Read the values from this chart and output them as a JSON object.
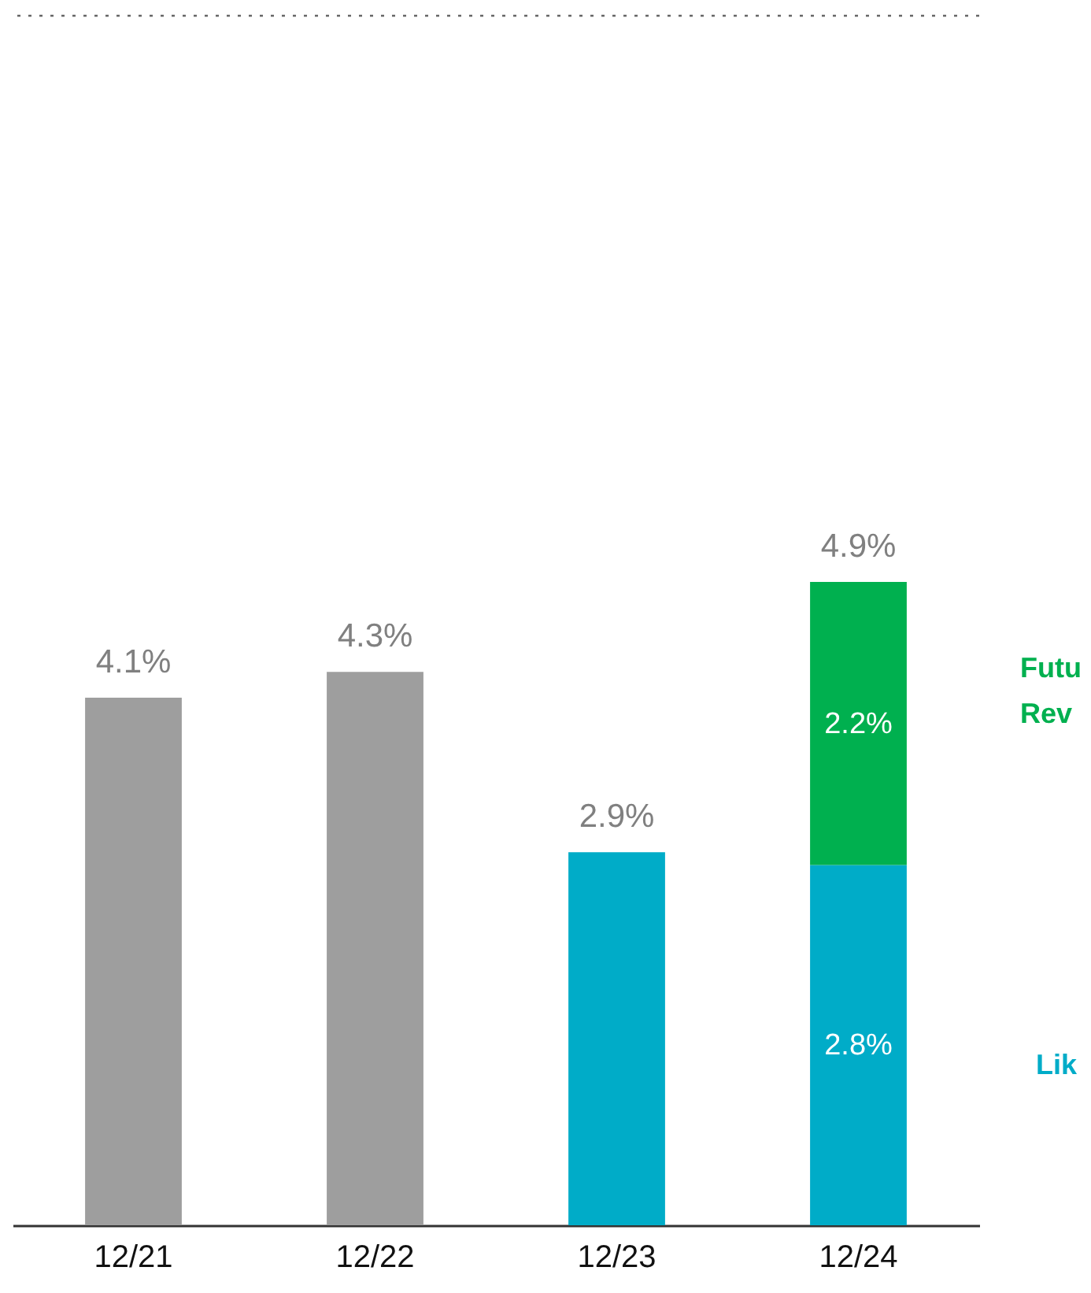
{
  "chart_data": {
    "type": "bar",
    "stacked": true,
    "categories": [
      "12/21",
      "12/22",
      "12/23",
      "12/24"
    ],
    "series": [
      {
        "colors": [
          "#9e9e9e",
          "#9e9e9e",
          "#00acc8",
          "#00acc8"
        ],
        "values": [
          4.1,
          4.3,
          2.9,
          2.8
        ],
        "value_labels": [
          null,
          null,
          null,
          "2.8%"
        ]
      },
      {
        "color": "#00b04f",
        "values": [
          null,
          null,
          null,
          2.2
        ],
        "value_labels": [
          null,
          null,
          null,
          "2.2%"
        ]
      }
    ],
    "totals": [
      "4.1%",
      "4.3%",
      "2.9%",
      "4.9%"
    ],
    "ylim": [
      0,
      9.4
    ],
    "tick_labels": "x",
    "annotations": [
      "Futu",
      "Rev",
      "Lik"
    ]
  }
}
